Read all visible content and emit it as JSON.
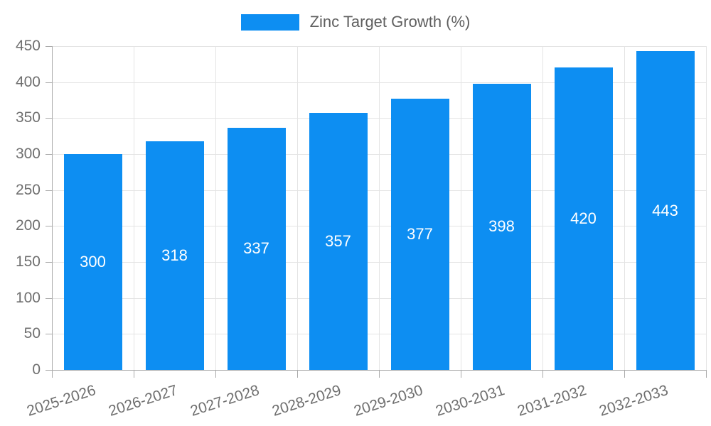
{
  "chart_data": {
    "type": "bar",
    "title": "Zinc Target Growth (%)",
    "categories": [
      "2025-2026",
      "2026-2027",
      "2027-2028",
      "2028-2029",
      "2029-2030",
      "2030-2031",
      "2031-2032",
      "2032-2033"
    ],
    "series": [
      {
        "name": "Zinc Target Growth (%)",
        "values": [
          300,
          318,
          337,
          357,
          377,
          398,
          420,
          443
        ],
        "color": "#0d8ef2"
      }
    ],
    "xlabel": "",
    "ylabel": "",
    "ylim": [
      0,
      450
    ],
    "ytick_step": 50,
    "grid": "both",
    "legend_position": "top",
    "value_labels": {
      "position": "inside-middle",
      "color": "#ffffff"
    },
    "colors": {
      "bar": "#0d8ef2",
      "gridline": "#e4e4e4",
      "axis": "#aaaaaa",
      "axis_text": "#6f6f6f",
      "legend_text": "#5f5f5f",
      "background": "#ffffff"
    }
  }
}
